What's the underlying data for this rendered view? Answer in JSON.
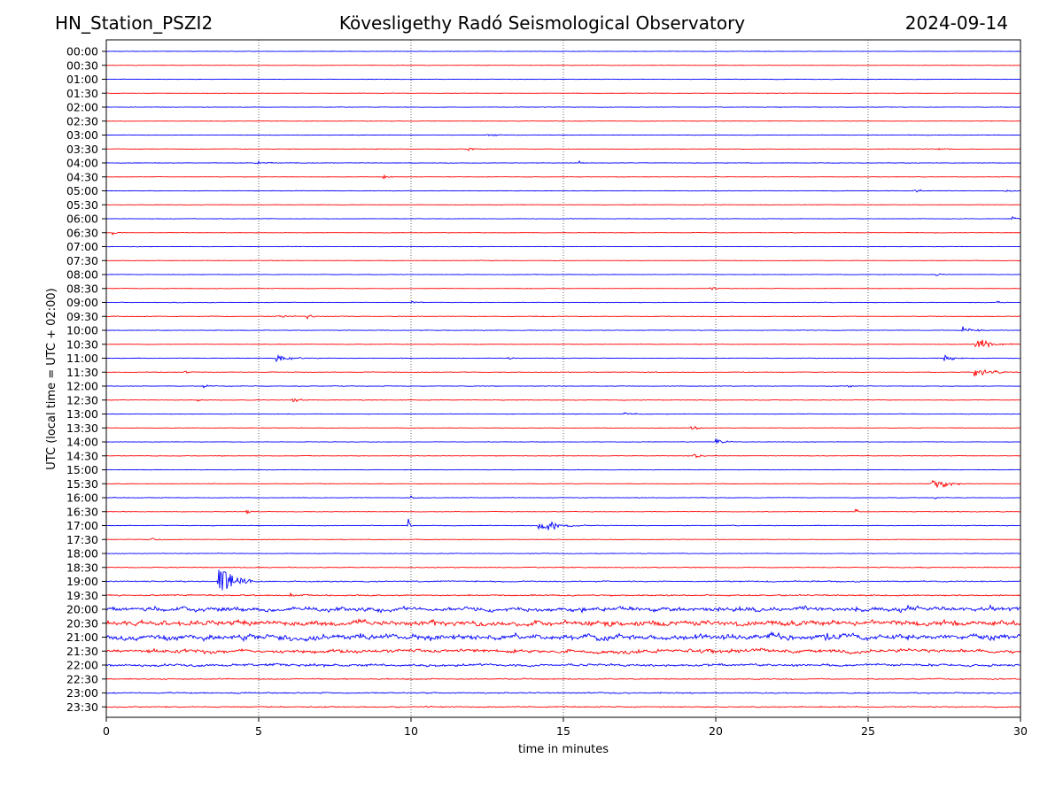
{
  "header": {
    "station": "HN_Station_PSZI2",
    "observatory": "Kövesligethy Radó Seismological Observatory",
    "date": "2024-09-14"
  },
  "chart_data": {
    "type": "line",
    "title": "Kövesligethy Radó Seismological Observatory",
    "xlabel": "time in minutes",
    "ylabel": "UTC (local time = UTC + 02:00)",
    "xlim": [
      0,
      30
    ],
    "x_ticks": [
      0,
      5,
      10,
      15,
      20,
      25,
      30
    ],
    "grid": "vertical dotted at 5-minute ticks",
    "colors": {
      "even": "#0000ff",
      "odd": "#ff0000"
    },
    "rows": [
      "00:00",
      "00:30",
      "01:00",
      "01:30",
      "02:00",
      "02:30",
      "03:00",
      "03:30",
      "04:00",
      "04:30",
      "05:00",
      "05:30",
      "06:00",
      "06:30",
      "07:00",
      "07:30",
      "08:00",
      "08:30",
      "09:00",
      "09:30",
      "10:00",
      "10:30",
      "11:00",
      "11:30",
      "12:00",
      "12:30",
      "13:00",
      "13:30",
      "14:00",
      "14:30",
      "15:00",
      "15:30",
      "16:00",
      "16:30",
      "17:00",
      "17:30",
      "18:00",
      "18:30",
      "19:00",
      "19:30",
      "20:00",
      "20:30",
      "21:00",
      "21:30",
      "22:00",
      "22:30",
      "23:00",
      "23:30"
    ],
    "noise_levels": [
      0.3,
      0.3,
      0.35,
      0.3,
      0.35,
      0.3,
      0.35,
      0.35,
      0.35,
      0.3,
      0.4,
      0.3,
      0.35,
      0.35,
      0.3,
      0.3,
      0.35,
      0.35,
      0.4,
      0.45,
      0.4,
      0.4,
      0.45,
      0.45,
      0.4,
      0.45,
      0.4,
      0.35,
      0.35,
      0.35,
      0.35,
      0.4,
      0.45,
      0.45,
      0.5,
      0.4,
      0.45,
      0.6,
      0.9,
      1.0,
      2.6,
      3.2,
      3.4,
      2.2,
      1.5,
      0.9,
      0.9,
      0.8
    ],
    "events": [
      {
        "row": "03:00",
        "minute": 12.5,
        "amplitude": 1.5,
        "duration": 1.2
      },
      {
        "row": "03:30",
        "minute": 11.9,
        "amplitude": 2.5,
        "duration": 0.5
      },
      {
        "row": "03:30",
        "minute": 27.2,
        "amplitude": 1.5,
        "duration": 0.8
      },
      {
        "row": "04:00",
        "minute": 4.9,
        "amplitude": 2.0,
        "duration": 0.8
      },
      {
        "row": "04:00",
        "minute": 15.5,
        "amplitude": 1.5,
        "duration": 0.6
      },
      {
        "row": "04:30",
        "minute": 9.1,
        "amplitude": 2.0,
        "duration": 0.5
      },
      {
        "row": "05:00",
        "minute": 26.5,
        "amplitude": 2.0,
        "duration": 0.5
      },
      {
        "row": "05:00",
        "minute": 29.5,
        "amplitude": 1.8,
        "duration": 0.5
      },
      {
        "row": "06:00",
        "minute": 29.7,
        "amplitude": 2.0,
        "duration": 0.6
      },
      {
        "row": "06:30",
        "minute": 0.2,
        "amplitude": 2.0,
        "duration": 0.5
      },
      {
        "row": "08:00",
        "minute": 27.2,
        "amplitude": 2.5,
        "duration": 0.5
      },
      {
        "row": "08:30",
        "minute": 19.8,
        "amplitude": 1.5,
        "duration": 1.0
      },
      {
        "row": "09:00",
        "minute": 10.0,
        "amplitude": 1.8,
        "duration": 0.6
      },
      {
        "row": "09:00",
        "minute": 29.2,
        "amplitude": 1.8,
        "duration": 0.4
      },
      {
        "row": "09:30",
        "minute": 5.6,
        "amplitude": 1.5,
        "duration": 1.0
      },
      {
        "row": "09:30",
        "minute": 6.6,
        "amplitude": 2.5,
        "duration": 0.4
      },
      {
        "row": "10:00",
        "minute": 28.1,
        "amplitude": 3.5,
        "duration": 1.0
      },
      {
        "row": "10:30",
        "minute": 28.5,
        "amplitude": 6.0,
        "duration": 1.4
      },
      {
        "row": "11:00",
        "minute": 5.6,
        "amplitude": 6.0,
        "duration": 1.0
      },
      {
        "row": "11:00",
        "minute": 27.5,
        "amplitude": 4.0,
        "duration": 0.8
      },
      {
        "row": "11:00",
        "minute": 13.2,
        "amplitude": 2.0,
        "duration": 0.4
      },
      {
        "row": "11:30",
        "minute": 2.6,
        "amplitude": 2.5,
        "duration": 0.5
      },
      {
        "row": "11:30",
        "minute": 28.5,
        "amplitude": 5.0,
        "duration": 1.4
      },
      {
        "row": "12:00",
        "minute": 3.2,
        "amplitude": 2.0,
        "duration": 0.5
      },
      {
        "row": "12:00",
        "minute": 24.3,
        "amplitude": 1.5,
        "duration": 0.8
      },
      {
        "row": "12:30",
        "minute": 6.1,
        "amplitude": 3.0,
        "duration": 0.8
      },
      {
        "row": "12:30",
        "minute": 3.0,
        "amplitude": 2.0,
        "duration": 0.3
      },
      {
        "row": "13:00",
        "minute": 17.0,
        "amplitude": 1.2,
        "duration": 1.0
      },
      {
        "row": "13:30",
        "minute": 19.2,
        "amplitude": 3.0,
        "duration": 0.6
      },
      {
        "row": "14:00",
        "minute": 20.0,
        "amplitude": 3.0,
        "duration": 0.8
      },
      {
        "row": "14:30",
        "minute": 19.3,
        "amplitude": 3.0,
        "duration": 0.5
      },
      {
        "row": "15:30",
        "minute": 27.1,
        "amplitude": 7.5,
        "duration": 1.2
      },
      {
        "row": "16:00",
        "minute": 10.0,
        "amplitude": 1.8,
        "duration": 0.6
      },
      {
        "row": "16:00",
        "minute": 27.2,
        "amplitude": 1.5,
        "duration": 0.6
      },
      {
        "row": "16:30",
        "minute": 4.6,
        "amplitude": 4.5,
        "duration": 0.4
      },
      {
        "row": "16:30",
        "minute": 24.6,
        "amplitude": 10.0,
        "duration": 0.1
      },
      {
        "row": "17:00",
        "minute": 9.9,
        "amplitude": 12.0,
        "duration": 0.2
      },
      {
        "row": "17:00",
        "minute": 14.2,
        "amplitude": 5.0,
        "duration": 1.8
      },
      {
        "row": "17:30",
        "minute": 1.5,
        "amplitude": 2.5,
        "duration": 0.4
      },
      {
        "row": "19:00",
        "minute": 3.7,
        "amplitude": 18.0,
        "duration": 1.2
      },
      {
        "row": "19:30",
        "minute": 6.0,
        "amplitude": 2.5,
        "duration": 0.6
      },
      {
        "row": "20:00",
        "minute": 15.6,
        "amplitude": 4.0,
        "duration": 0.2
      },
      {
        "row": "20:00",
        "minute": 26.3,
        "amplitude": 4.0,
        "duration": 0.4
      },
      {
        "row": "20:00",
        "minute": 29.0,
        "amplitude": 3.0,
        "duration": 1.2
      },
      {
        "row": "21:00",
        "minute": 23.6,
        "amplitude": 5.0,
        "duration": 0.4
      }
    ]
  }
}
